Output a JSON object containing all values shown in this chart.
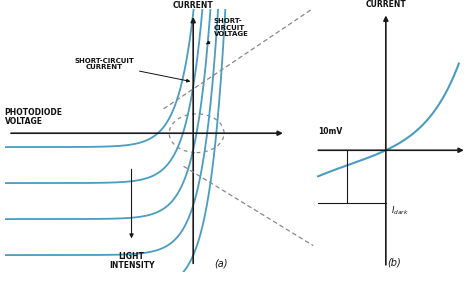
{
  "bg_color": "#ffffff",
  "curve_color": "#4a9cc0",
  "axis_color": "#1a1a1a",
  "text_color": "#111111",
  "dotted_color": "#888888",
  "label_fontsize": 5.5,
  "anno_fontsize": 5.0,
  "left_xlim": [
    -5.5,
    2.8
  ],
  "left_ylim": [
    -5.0,
    4.5
  ],
  "right_xlim": [
    -2.8,
    3.2
  ],
  "right_ylim": [
    -3.0,
    3.5
  ],
  "iv_i_shifts": [
    3.2,
    1.9,
    0.6,
    -0.7,
    -2.0
  ],
  "iv_x_shifts": [
    0.3,
    0.15,
    0.0,
    -0.15,
    -0.3
  ]
}
